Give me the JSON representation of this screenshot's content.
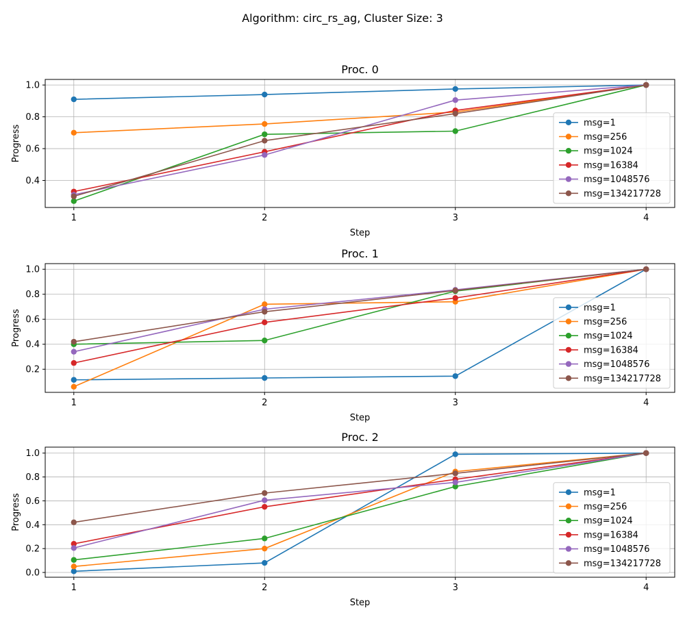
{
  "suptitle": "Algorithm: circ_rs_ag, Cluster Size: 3",
  "colors": {
    "msg=1": "#1f77b4",
    "msg=256": "#ff7f0e",
    "msg=1024": "#2ca02c",
    "msg=16384": "#d62728",
    "msg=1048576": "#9467bd",
    "msg=134217728": "#8c564b"
  },
  "chart_data": [
    {
      "type": "line",
      "title": "Proc. 0",
      "xlabel": "Step",
      "ylabel": "Progress",
      "x": [
        1,
        2,
        3,
        4
      ],
      "xticks": [
        "1",
        "2",
        "3",
        "4"
      ],
      "yticks": [
        "0.4",
        "0.6",
        "0.8",
        "1.0"
      ],
      "ylim": [
        0.23,
        1.035
      ],
      "grid": true,
      "legend_position": "lower right",
      "series": [
        {
          "name": "msg=1",
          "values": [
            0.91,
            0.94,
            0.975,
            1.0
          ]
        },
        {
          "name": "msg=256",
          "values": [
            0.7,
            0.755,
            0.83,
            1.0
          ]
        },
        {
          "name": "msg=1024",
          "values": [
            0.27,
            0.69,
            0.71,
            1.0
          ]
        },
        {
          "name": "msg=16384",
          "values": [
            0.33,
            0.58,
            0.84,
            1.0
          ]
        },
        {
          "name": "msg=1048576",
          "values": [
            0.31,
            0.56,
            0.905,
            1.0
          ]
        },
        {
          "name": "msg=134217728",
          "values": [
            0.3,
            0.65,
            0.82,
            1.0
          ]
        }
      ]
    },
    {
      "type": "line",
      "title": "Proc. 1",
      "xlabel": "Step",
      "ylabel": "Progress",
      "x": [
        1,
        2,
        3,
        4
      ],
      "xticks": [
        "1",
        "2",
        "3",
        "4"
      ],
      "yticks": [
        "0.2",
        "0.4",
        "0.6",
        "0.8",
        "1.0"
      ],
      "ylim": [
        0.015,
        1.045
      ],
      "grid": true,
      "legend_position": "lower right",
      "series": [
        {
          "name": "msg=1",
          "values": [
            0.115,
            0.13,
            0.145,
            1.0
          ]
        },
        {
          "name": "msg=256",
          "values": [
            0.06,
            0.72,
            0.74,
            1.0
          ]
        },
        {
          "name": "msg=1024",
          "values": [
            0.4,
            0.43,
            0.825,
            1.0
          ]
        },
        {
          "name": "msg=16384",
          "values": [
            0.25,
            0.575,
            0.77,
            1.0
          ]
        },
        {
          "name": "msg=1048576",
          "values": [
            0.34,
            0.68,
            0.835,
            1.0
          ]
        },
        {
          "name": "msg=134217728",
          "values": [
            0.42,
            0.66,
            0.83,
            1.0
          ]
        }
      ]
    },
    {
      "type": "line",
      "title": "Proc. 2",
      "xlabel": "Step",
      "ylabel": "Progress",
      "x": [
        1,
        2,
        3,
        4
      ],
      "xticks": [
        "1",
        "2",
        "3",
        "4"
      ],
      "yticks": [
        "0.0",
        "0.2",
        "0.4",
        "0.6",
        "0.8",
        "1.0"
      ],
      "ylim": [
        -0.04,
        1.05
      ],
      "grid": true,
      "legend_position": "lower right",
      "series": [
        {
          "name": "msg=1",
          "values": [
            0.01,
            0.08,
            0.99,
            1.0
          ]
        },
        {
          "name": "msg=256",
          "values": [
            0.05,
            0.2,
            0.845,
            1.0
          ]
        },
        {
          "name": "msg=1024",
          "values": [
            0.105,
            0.285,
            0.72,
            1.0
          ]
        },
        {
          "name": "msg=16384",
          "values": [
            0.24,
            0.55,
            0.78,
            1.0
          ]
        },
        {
          "name": "msg=1048576",
          "values": [
            0.205,
            0.605,
            0.755,
            1.0
          ]
        },
        {
          "name": "msg=134217728",
          "values": [
            0.42,
            0.665,
            0.83,
            1.0
          ]
        }
      ]
    }
  ]
}
